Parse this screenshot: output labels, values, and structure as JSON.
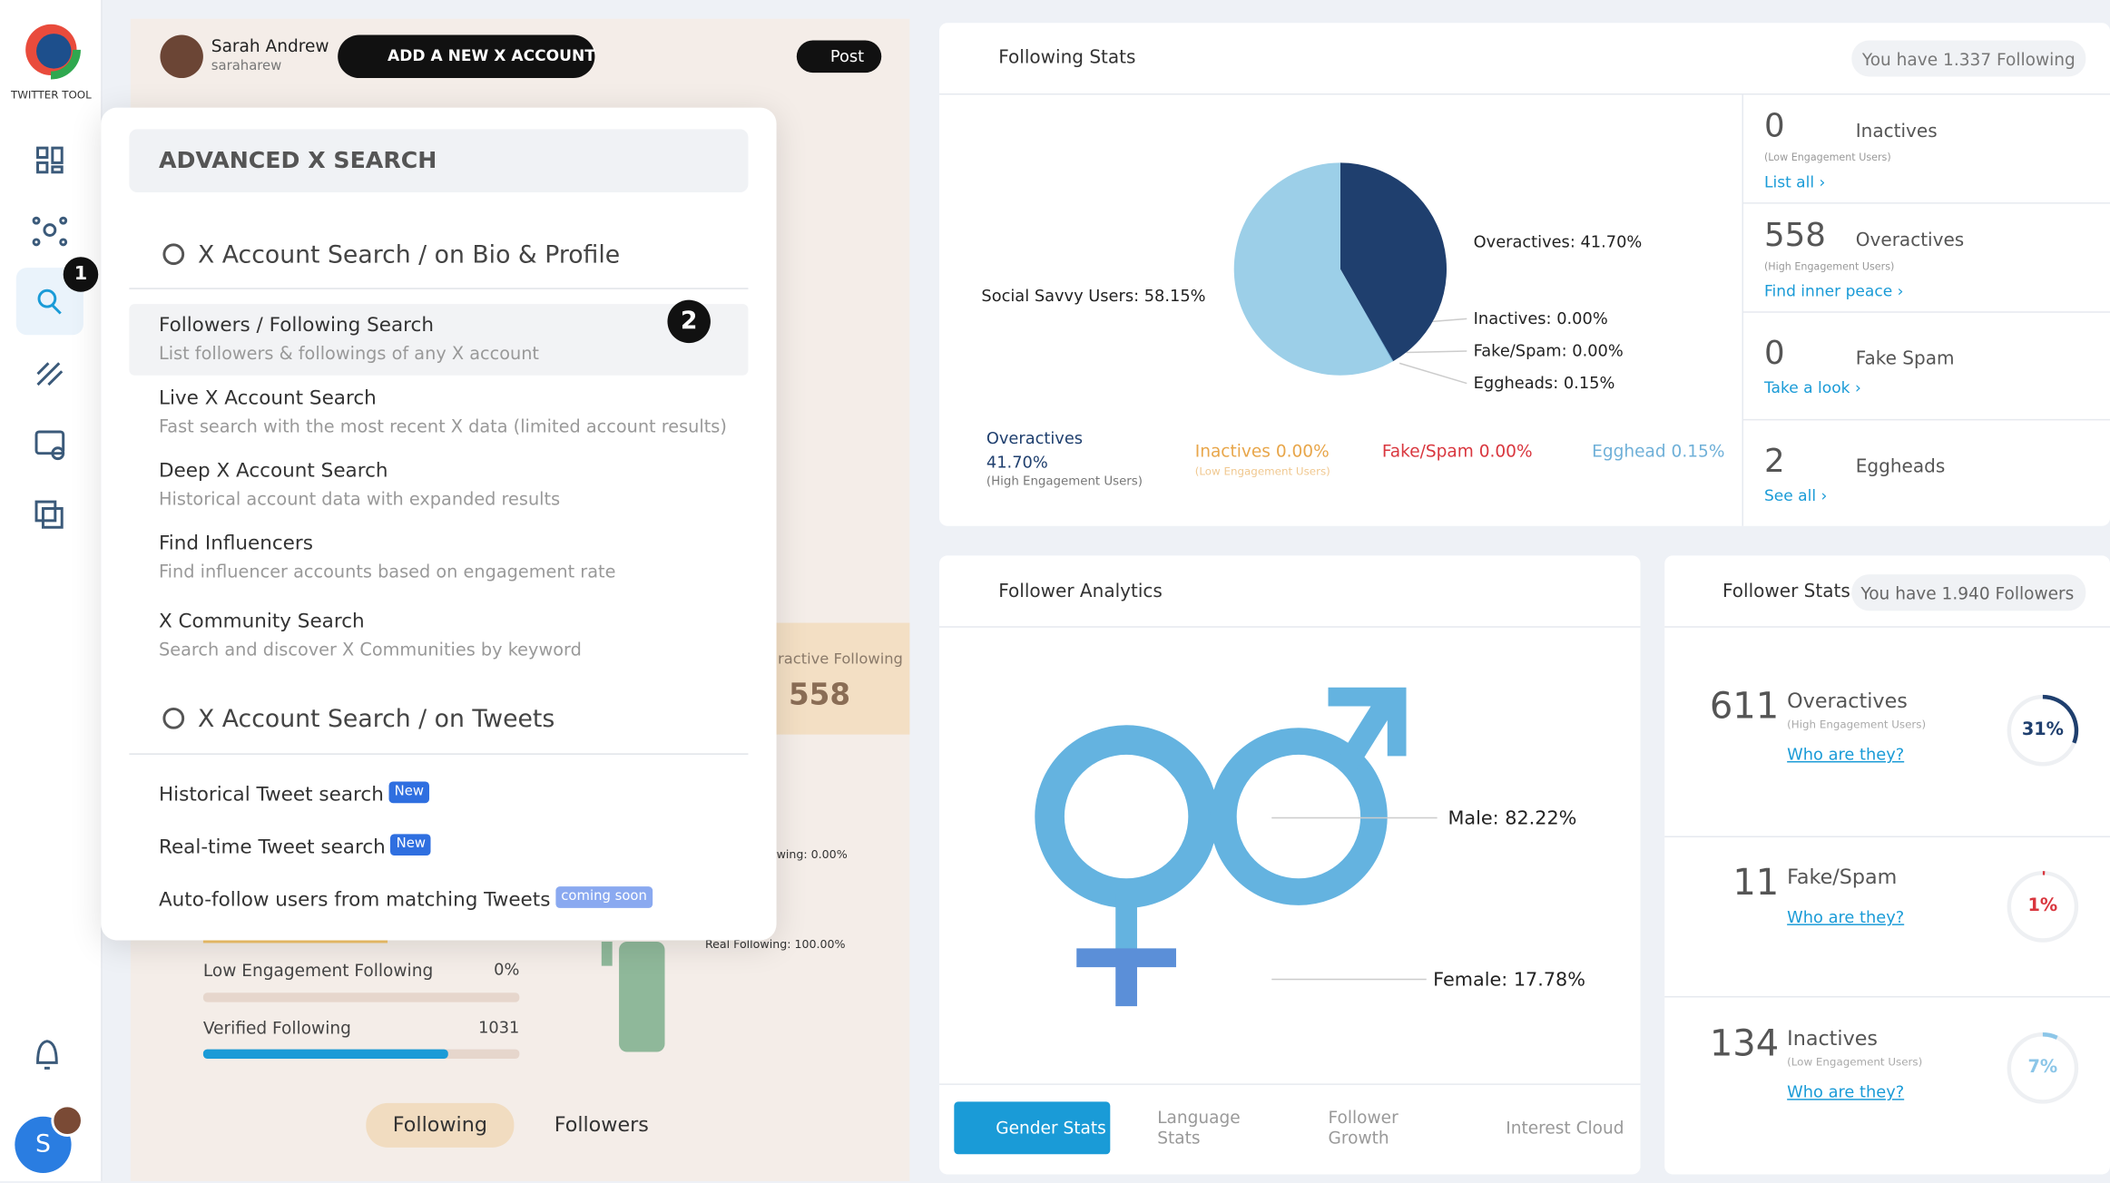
{
  "sidebar": {
    "brand": "TWITTER TOOL",
    "badge": "1",
    "avatar_initial": "S"
  },
  "header": {
    "user_name": "Sarah Andrew",
    "user_handle": "saraharew",
    "add_button": "ADD A NEW X ACCOUNT",
    "post_button": "Post"
  },
  "background_panel": {
    "interactive_label": "ractive Following",
    "interactive_value": "558",
    "partial_stat": "wing: 0.00%",
    "real_following": "Real Following: 100.00%",
    "bars": [
      {
        "label": "Low Engagement Following",
        "value": "0%"
      },
      {
        "label": "Verified Following",
        "value": "1031"
      }
    ],
    "tabs": [
      "Following",
      "Followers"
    ]
  },
  "search_menu": {
    "title": "ADVANCED X SEARCH",
    "badge": "2",
    "sections": [
      {
        "heading": "X Account Search / on Bio & Profile",
        "items": [
          {
            "title": "Followers / Following Search",
            "subtitle": "List followers & followings of any X account"
          },
          {
            "title": "Live X Account Search",
            "subtitle": "Fast search with the most recent X data (limited account results)"
          },
          {
            "title": "Deep X Account Search",
            "subtitle": "Historical account data with expanded results"
          },
          {
            "title": "Find Influencers",
            "subtitle": "Find influencer accounts based on engagement rate"
          },
          {
            "title": "X Community Search",
            "subtitle": "Search and discover X Communities by keyword"
          }
        ]
      },
      {
        "heading": "X Account Search / on Tweets",
        "items": [
          {
            "title": "Historical Tweet search",
            "tag": "New"
          },
          {
            "title": "Real-time Tweet search",
            "tag": "New"
          },
          {
            "title": "Auto-follow users from matching Tweets",
            "tag": "coming soon"
          }
        ]
      }
    ]
  },
  "following_stats": {
    "title": "Following Stats",
    "count_pill": "You have 1.337 Following",
    "pie": [
      {
        "name": "Overactives",
        "value": 41.7,
        "label": "Overactives: 41.70%",
        "color": "#1f3f6e"
      },
      {
        "name": "Inactives",
        "value": 0,
        "label": "Inactives: 0.00%",
        "color": "#e8a64a"
      },
      {
        "name": "Fake/Spam",
        "value": 0,
        "label": "Fake/Spam: 0.00%",
        "color": "#d9363e"
      },
      {
        "name": "Eggheads",
        "value": 0.15,
        "label": "Eggheads: 0.15%",
        "color": "#6fb0d8"
      },
      {
        "name": "Social Savvy Users",
        "value": 58.15,
        "label": "Social Savvy Users: 58.15%",
        "color": "#9ccfe8"
      }
    ],
    "legend": [
      {
        "label": "Overactives",
        "value": "41.70%",
        "sub": "(High Engagement Users)"
      },
      {
        "label": "Inactives 0.00%",
        "sub": "(Low Engagement Users)"
      },
      {
        "label": "Fake/Spam 0.00%"
      },
      {
        "label": "Egghead 0.15%"
      }
    ],
    "cards": [
      {
        "value": "0",
        "label": "Inactives",
        "sub": "(Low Engagement Users)",
        "link": "List all ›"
      },
      {
        "value": "558",
        "label": "Overactives",
        "sub": "(High Engagement Users)",
        "link": "Find inner peace ›"
      },
      {
        "value": "0",
        "label": "Fake Spam",
        "link": "Take a look ›"
      },
      {
        "value": "2",
        "label": "Eggheads",
        "link": "See all ›"
      }
    ]
  },
  "follower_analytics": {
    "title": "Follower Analytics",
    "male": "Male: 82.22%",
    "female": "Female: 17.78%",
    "tabs": [
      "Gender Stats",
      "Language Stats",
      "Follower Growth",
      "Interest Cloud"
    ]
  },
  "follower_stats": {
    "title": "Follower Stats",
    "count_pill": "You have 1.940 Followers",
    "items": [
      {
        "count": "611",
        "label": "Overactives",
        "sub": "(High Engagement Users)",
        "link": "Who are they?",
        "percent": {
          "value": 31,
          "label": "31%"
        },
        "color": "#1f3f6e"
      },
      {
        "count": "11",
        "label": "Fake/Spam",
        "link": "Who are they?",
        "percent": {
          "value": 1,
          "label": "1%"
        },
        "color": "#d9363e"
      },
      {
        "count": "134",
        "label": "Inactives",
        "sub": "(Low Engagement Users)",
        "link": "Who are they?",
        "percent": {
          "value": 7,
          "label": "7%"
        },
        "color": "#8cc6e8"
      }
    ]
  }
}
